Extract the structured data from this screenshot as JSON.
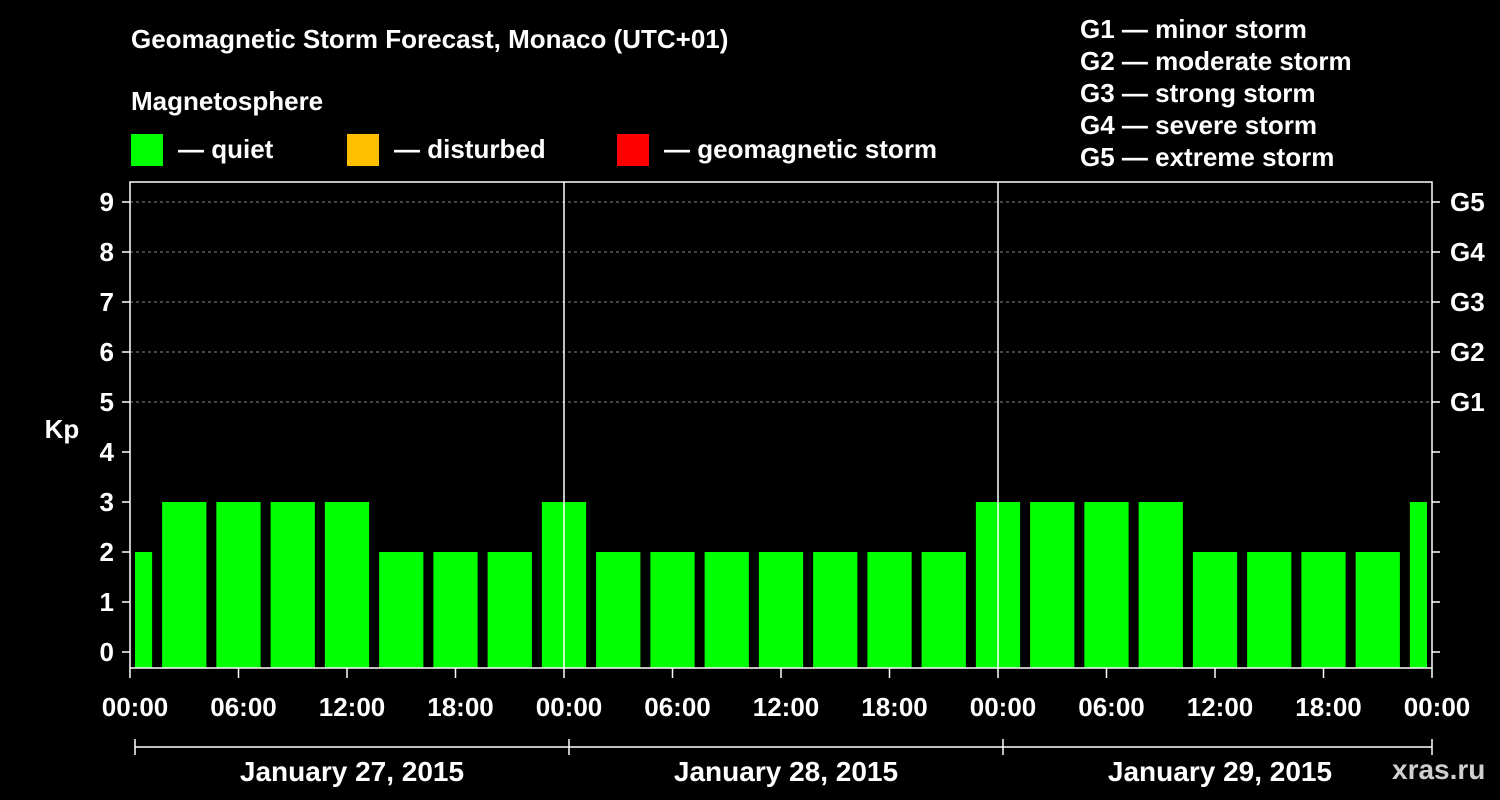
{
  "title": "Geomagnetic Storm Forecast, Monaco (UTC+01)",
  "subtitle": "Magnetosphere",
  "legend": [
    {
      "label": "— quiet",
      "color": "#00ff00"
    },
    {
      "label": "— disturbed",
      "color": "#ffc000"
    },
    {
      "label": "— geomagnetic storm",
      "color": "#ff0000"
    }
  ],
  "storm_levels": [
    "G1 — minor storm",
    "G2 — moderate storm",
    "G3 — strong storm",
    "G4 — severe storm",
    "G5 — extreme storm"
  ],
  "watermark": "xras.ru",
  "chart_data": {
    "type": "bar",
    "ylabel": "Kp",
    "ylim": [
      0,
      9
    ],
    "y_ticks": [
      0,
      1,
      2,
      3,
      4,
      5,
      6,
      7,
      8,
      9
    ],
    "right_ticks": [
      {
        "value": 5,
        "label": "G1"
      },
      {
        "value": 6,
        "label": "G2"
      },
      {
        "value": 7,
        "label": "G3"
      },
      {
        "value": 8,
        "label": "G4"
      },
      {
        "value": 9,
        "label": "G5"
      }
    ],
    "grid": "dashed horizontal at Kp 5-9",
    "x_tick_labels": [
      "00:00",
      "06:00",
      "12:00",
      "18:00",
      "00:00",
      "06:00",
      "12:00",
      "18:00",
      "00:00",
      "06:00",
      "12:00",
      "18:00",
      "00:00"
    ],
    "days": [
      "January 27, 2015",
      "January 28, 2015",
      "January 29, 2015"
    ],
    "interval_hours": 3,
    "bar_color": "#00ff00",
    "values": [
      2,
      3,
      3,
      3,
      3,
      2,
      2,
      2,
      3,
      2,
      2,
      2,
      2,
      2,
      2,
      2,
      3,
      3,
      3,
      3,
      2,
      2,
      2,
      2,
      3
    ]
  }
}
